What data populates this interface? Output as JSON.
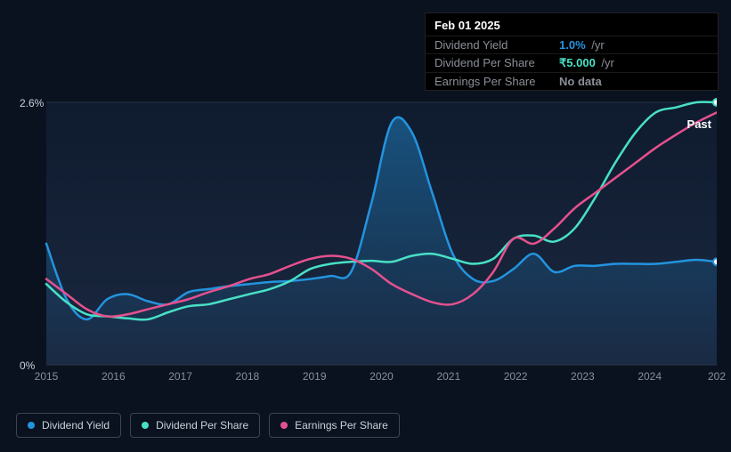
{
  "chart": {
    "type": "line",
    "background_color": "#0a1220",
    "plot_bg_top": "#0f1b2e",
    "plot_bg_bottom": "#1a2840",
    "grid_color": "#2c3646",
    "ylim": [
      0,
      2.6
    ],
    "y_ticks": [
      "0%",
      "2.6%"
    ],
    "x_labels": [
      "2015",
      "2016",
      "2017",
      "2018",
      "2019",
      "2020",
      "2021",
      "2022",
      "2023",
      "2024",
      "202"
    ],
    "past_label": "Past",
    "series": {
      "dividend_yield": {
        "label": "Dividend Yield",
        "color": "#2394df",
        "fill": "rgba(35,148,223,0.25)",
        "width": 2.5,
        "values": [
          1.2,
          0.65,
          0.45,
          0.65,
          0.7,
          0.63,
          0.6,
          0.72,
          0.75,
          0.78,
          0.8,
          0.82,
          0.83,
          0.85,
          0.88,
          0.92,
          1.6,
          2.4,
          2.3,
          1.7,
          1.1,
          0.85,
          0.83,
          0.95,
          1.1,
          0.92,
          0.98,
          0.98,
          1.0,
          1.0,
          1.0,
          1.02,
          1.04,
          1.02
        ]
      },
      "dividend_per_share": {
        "label": "Dividend Per Share",
        "color": "#48e0c6",
        "width": 2.5,
        "values": [
          0.8,
          0.62,
          0.5,
          0.48,
          0.46,
          0.45,
          0.52,
          0.58,
          0.6,
          0.65,
          0.7,
          0.75,
          0.83,
          0.95,
          1.0,
          1.02,
          1.03,
          1.02,
          1.08,
          1.1,
          1.05,
          1.0,
          1.05,
          1.25,
          1.28,
          1.22,
          1.35,
          1.65,
          2.0,
          2.3,
          2.5,
          2.55,
          2.6,
          2.6
        ]
      },
      "earnings_per_share": {
        "label": "Earnings Per Share",
        "color": "#e5518e",
        "width": 2.5,
        "values": [
          0.85,
          0.7,
          0.55,
          0.48,
          0.5,
          0.55,
          0.6,
          0.65,
          0.72,
          0.78,
          0.85,
          0.9,
          0.98,
          1.05,
          1.08,
          1.05,
          0.95,
          0.8,
          0.7,
          0.62,
          0.6,
          0.7,
          0.92,
          1.25,
          1.2,
          1.35,
          1.55,
          1.7,
          1.85,
          2.0,
          2.15,
          2.28,
          2.4,
          2.5
        ]
      }
    }
  },
  "tooltip": {
    "title": "Feb 01 2025",
    "rows": [
      {
        "label": "Dividend Yield",
        "value": "1.0%",
        "unit": "/yr",
        "color": "#2394df"
      },
      {
        "label": "Dividend Per Share",
        "value": "₹5.000",
        "unit": "/yr",
        "color": "#48e0c6"
      },
      {
        "label": "Earnings Per Share",
        "value": "No data",
        "unit": "",
        "color": "#8a8f98"
      }
    ]
  },
  "legend": [
    {
      "label": "Dividend Yield",
      "color": "#2394df"
    },
    {
      "label": "Dividend Per Share",
      "color": "#48e0c6"
    },
    {
      "label": "Earnings Per Share",
      "color": "#e5518e"
    }
  ]
}
